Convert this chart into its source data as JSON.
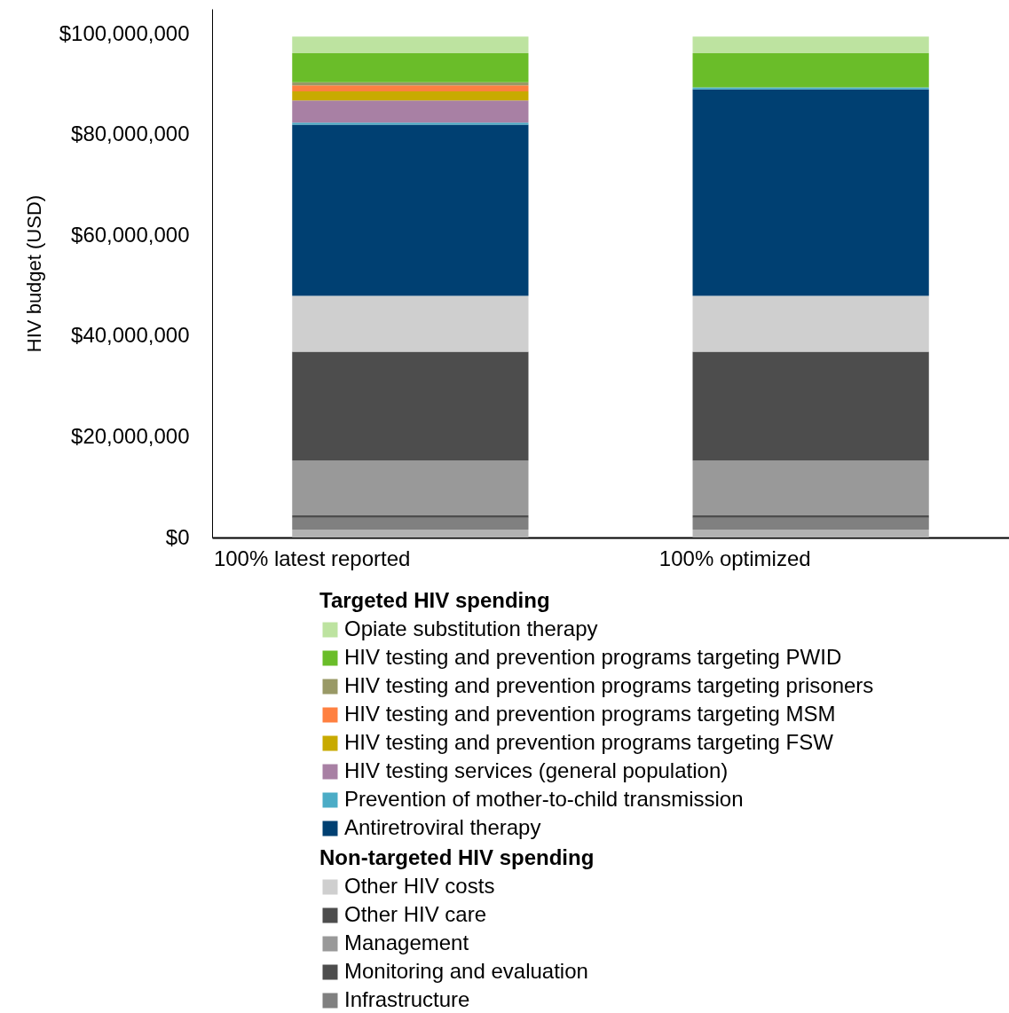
{
  "chart_data": {
    "type": "bar",
    "stacked": true,
    "ylabel": "HIV budget (USD)",
    "legend_title": "Targeted HIV spending",
    "annotations": [
      "Non-targeted HIV spending"
    ],
    "legend": "bottom",
    "categories": [
      "100% latest reported",
      "100% optimized"
    ],
    "ylim": [
      0,
      105000000
    ],
    "yticks": [
      {
        "value": 0,
        "label": "$0"
      },
      {
        "value": 20000000,
        "label": "$20,000,000"
      },
      {
        "value": 40000000,
        "label": "$40,000,000"
      },
      {
        "value": 60000000,
        "label": "$60,000,000"
      },
      {
        "value": 80000000,
        "label": "$80,000,000"
      },
      {
        "value": 100000000,
        "label": "$100,000,000"
      }
    ],
    "series": [
      {
        "color": "#b2b2b2",
        "values": [
          1600000,
          1600000
        ]
      },
      {
        "name": "Infrastructure",
        "color": "#808080",
        "values": [
          2300000,
          2300000
        ]
      },
      {
        "name": "Monitoring and evaluation",
        "color": "#4d4d4d",
        "values": [
          500000,
          500000
        ]
      },
      {
        "name": "Management",
        "color": "#999999",
        "values": [
          10900000,
          10900000
        ]
      },
      {
        "name": "Other HIV care",
        "color": "#4d4d4d",
        "values": [
          21600000,
          21600000
        ]
      },
      {
        "name": "Other HIV costs",
        "color": "#cfcfcf",
        "values": [
          11100000,
          11100000
        ]
      },
      {
        "name": "Antiretroviral therapy",
        "color": "#004072",
        "values": [
          34000000,
          41000000
        ]
      },
      {
        "name": "Prevention of mother-to-child transmission",
        "color": "#4bacc6",
        "values": [
          400000,
          400000
        ]
      },
      {
        "name": "HIV testing services (general population)",
        "color": "#a880a4",
        "values": [
          4400000,
          0
        ]
      },
      {
        "name": "HIV testing and prevention programs targeting FSW",
        "color": "#c8aa00",
        "values": [
          1800000,
          0
        ]
      },
      {
        "name": "HIV testing and prevention programs targeting MSM",
        "color": "#ff8040",
        "values": [
          1200000,
          0
        ]
      },
      {
        "name": "HIV testing and prevention programs targeting prisoners",
        "color": "#999966",
        "values": [
          600000,
          0
        ]
      },
      {
        "name": "HIV testing and prevention programs targeting PWID",
        "color": "#6abd29",
        "values": [
          5800000,
          6800000
        ]
      },
      {
        "name": "Opiate substitution therapy",
        "color": "#bde3a0",
        "values": [
          3300000,
          3300000
        ]
      }
    ]
  }
}
